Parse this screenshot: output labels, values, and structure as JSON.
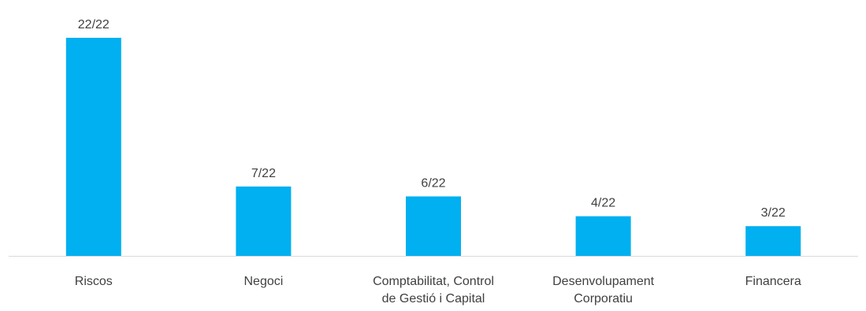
{
  "chart_data": {
    "type": "bar",
    "categories": [
      [
        "Riscos"
      ],
      [
        "Negoci"
      ],
      [
        "Comptabilitat, Control",
        "de Gestió i Capital"
      ],
      [
        "Desenvolupament",
        "Corporatiu"
      ],
      [
        "Financera"
      ]
    ],
    "values": [
      22,
      7,
      6,
      4,
      3
    ],
    "data_labels": [
      "22/22",
      "7/22",
      "6/22",
      "4/22",
      "3/22"
    ],
    "ylim": [
      0,
      22
    ],
    "grid": false,
    "legend": "none",
    "colors": {
      "bar": "#00B0F0",
      "axis": "#D9D9D9",
      "text": "#404040"
    }
  }
}
